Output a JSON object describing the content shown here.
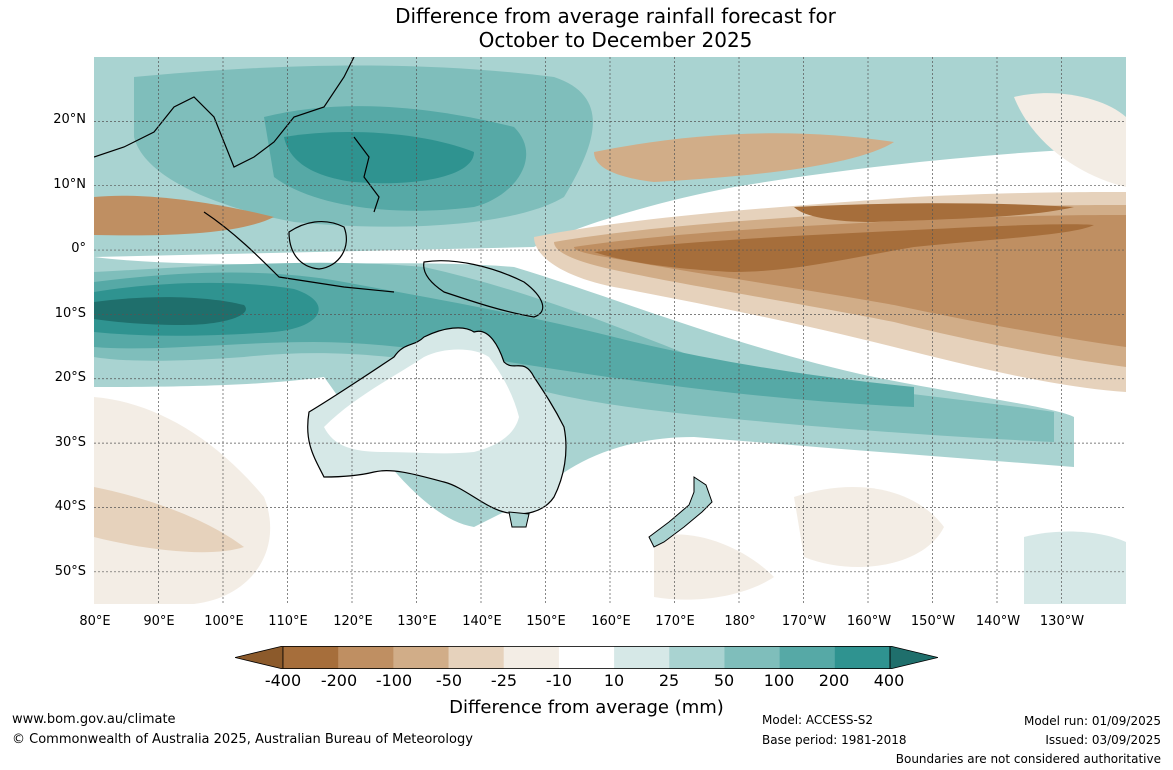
{
  "title": {
    "line1": "Difference from average rainfall forecast for",
    "line2": "October to December 2025"
  },
  "map": {
    "lat_labels": [
      "20°N",
      "10°N",
      "0°",
      "10°S",
      "20°S",
      "30°S",
      "40°S",
      "50°S"
    ],
    "lon_labels": [
      "80°E",
      "90°E",
      "100°E",
      "110°E",
      "120°E",
      "130°E",
      "140°E",
      "150°E",
      "160°E",
      "170°E",
      "180°",
      "170°W",
      "160°W",
      "150°W",
      "140°W",
      "130°W"
    ],
    "lat_range": [
      -55,
      30
    ],
    "lon_range": [
      80,
      240
    ]
  },
  "legend": {
    "title": "Difference from average (mm)",
    "tick_labels": [
      "-400",
      "-200",
      "-100",
      "-50",
      "-25",
      "-10",
      "10",
      "25",
      "50",
      "100",
      "200",
      "400"
    ],
    "colors": [
      "#8c5a2b",
      "#a66e3b",
      "#bf8f62",
      "#d1ad88",
      "#e6d2bc",
      "#f3ede5",
      "#ffffff",
      "#d6e8e7",
      "#a9d3d1",
      "#7fbebb",
      "#56a9a6",
      "#2f9390",
      "#1f6f6c"
    ],
    "accent_dry": "#a66e3b",
    "accent_wet": "#2f9390"
  },
  "footer": {
    "website": "www.bom.gov.au/climate",
    "copyright": "© Commonwealth of Australia 2025, Australian Bureau of Meteorology",
    "model": "Model: ACCESS-S2",
    "base_period": "Base period: 1981-2018",
    "model_run": "Model run: 01/09/2025",
    "issued": "Issued: 03/09/2025",
    "boundaries_note": "Boundaries are not considered authoritative"
  }
}
